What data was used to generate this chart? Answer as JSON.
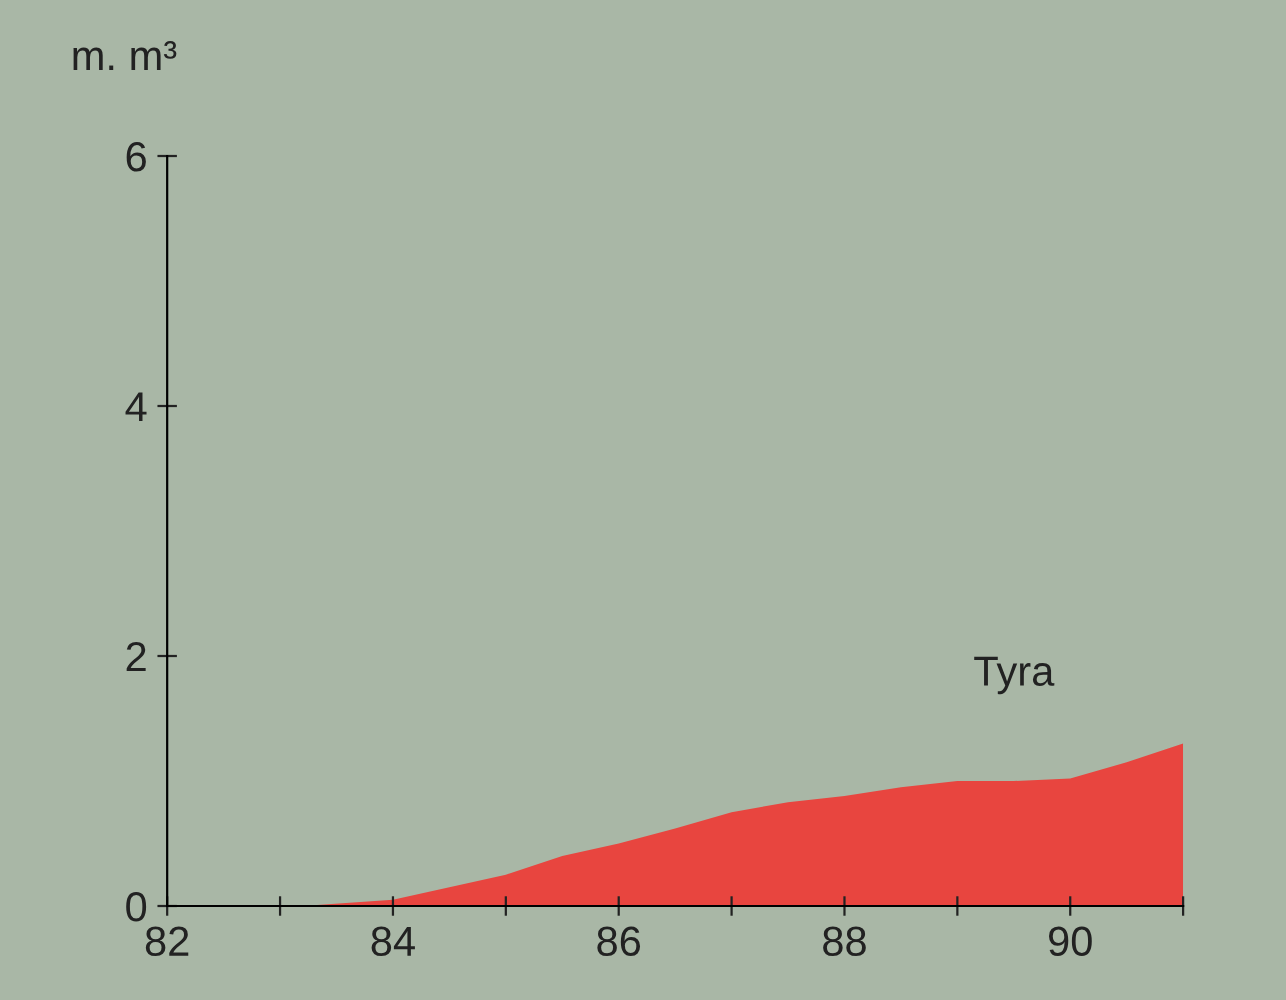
{
  "chart_data": {
    "type": "area",
    "ylabel": "m. m³",
    "x": [
      83.2,
      84,
      84.5,
      85,
      85.5,
      86,
      86.5,
      87,
      87.5,
      88,
      88.5,
      89,
      89.5,
      90,
      90.5,
      91
    ],
    "series": [
      {
        "name": "Tyra",
        "color": "#e8453f",
        "values": [
          0,
          0.05,
          0.15,
          0.25,
          0.4,
          0.5,
          0.62,
          0.75,
          0.83,
          0.88,
          0.95,
          1.0,
          1.0,
          1.02,
          1.15,
          1.3
        ]
      }
    ],
    "xlim": [
      82,
      91
    ],
    "ylim": [
      0,
      6
    ],
    "xticks": [
      82,
      {
        "value": 83,
        "label": null
      },
      84,
      {
        "value": 85,
        "label": null
      },
      86,
      {
        "value": 87,
        "label": null
      },
      88,
      {
        "value": 89,
        "label": null
      },
      90,
      {
        "value": 91,
        "label": null
      }
    ],
    "yticks": [
      0,
      2,
      4,
      6
    ],
    "grid": false,
    "legend": false
  }
}
